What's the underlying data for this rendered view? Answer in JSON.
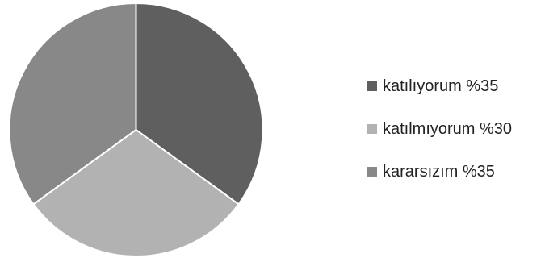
{
  "chart_data": {
    "type": "pie",
    "slices": [
      {
        "label": "katılıyorum %35",
        "value": 35,
        "color": "#5f5f5f"
      },
      {
        "label": "katılmıyorum %30",
        "value": 30,
        "color": "#b2b2b2"
      },
      {
        "label": "kararsızım %35",
        "value": 35,
        "color": "#888888"
      }
    ],
    "start_angle": "top",
    "direction": "clockwise",
    "slice_border_color": "#ffffff",
    "legend_position": "right"
  }
}
